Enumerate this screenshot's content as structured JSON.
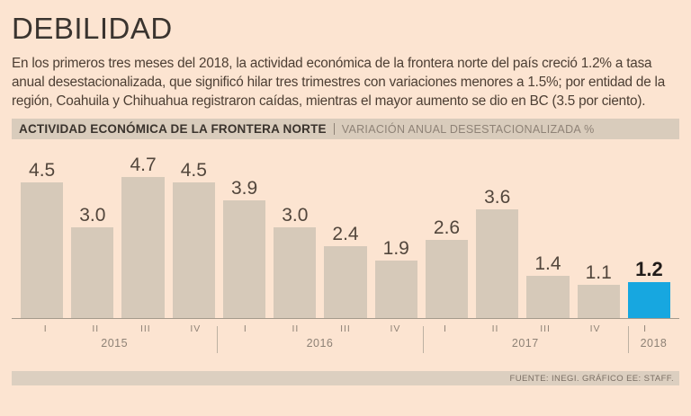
{
  "page": {
    "title": "DEBILIDAD",
    "description": "En los primeros tres meses del 2018, la actividad económica de la frontera norte del país creció 1.2% a tasa anual desestacionalizada, que significó hilar tres trimestres con variaciones menores a 1.5%; por entidad de la región, Coahuila y Chihuahua registraron caídas, mientras el mayor aumento se dio en BC (3.5 por ciento).",
    "footer": "FUENTE: INEGI. GRÁFICO EE: STAFF."
  },
  "chart_header": {
    "title": "ACTIVIDAD ECONÓMICA DE LA FRONTERA NORTE",
    "subtitle": "VARIACIÓN ANUAL DESESTACIONALIZADA %"
  },
  "colors": {
    "background": "#fce4d1",
    "panel": "#d9ccbc",
    "footer_bg": "#dccfc0",
    "bar": "#d6c9b9",
    "highlight": "#17a7e0"
  },
  "chart_data": {
    "type": "bar",
    "title": "ACTIVIDAD ECONÓMICA DE LA FRONTERA NORTE",
    "subtitle": "VARIACIÓN ANUAL DESESTACIONALIZADA %",
    "unit": "%",
    "x": [
      "I 2015",
      "II 2015",
      "III 2015",
      "IV 2015",
      "I 2016",
      "II 2016",
      "III 2016",
      "IV 2016",
      "I 2017",
      "II 2017",
      "III 2017",
      "IV 2017",
      "I 2018"
    ],
    "values": [
      4.5,
      3.0,
      4.7,
      4.5,
      3.9,
      3.0,
      2.4,
      1.9,
      2.6,
      3.6,
      1.4,
      1.1,
      1.2
    ],
    "groups": [
      {
        "year": "2015",
        "quarters": [
          "I",
          "II",
          "III",
          "IV"
        ]
      },
      {
        "year": "2016",
        "quarters": [
          "I",
          "II",
          "III",
          "IV"
        ]
      },
      {
        "year": "2017",
        "quarters": [
          "I",
          "II",
          "III",
          "IV"
        ]
      },
      {
        "year": "2018",
        "quarters": [
          "I"
        ]
      }
    ],
    "ylim": [
      0,
      5
    ],
    "grid": false,
    "legend": false,
    "highlight_index": 12,
    "colors": {
      "bar": "#d6c9b9",
      "highlight": "#17a7e0",
      "value_label": "#52463c",
      "highlight_value_label": "#211c1a"
    }
  }
}
